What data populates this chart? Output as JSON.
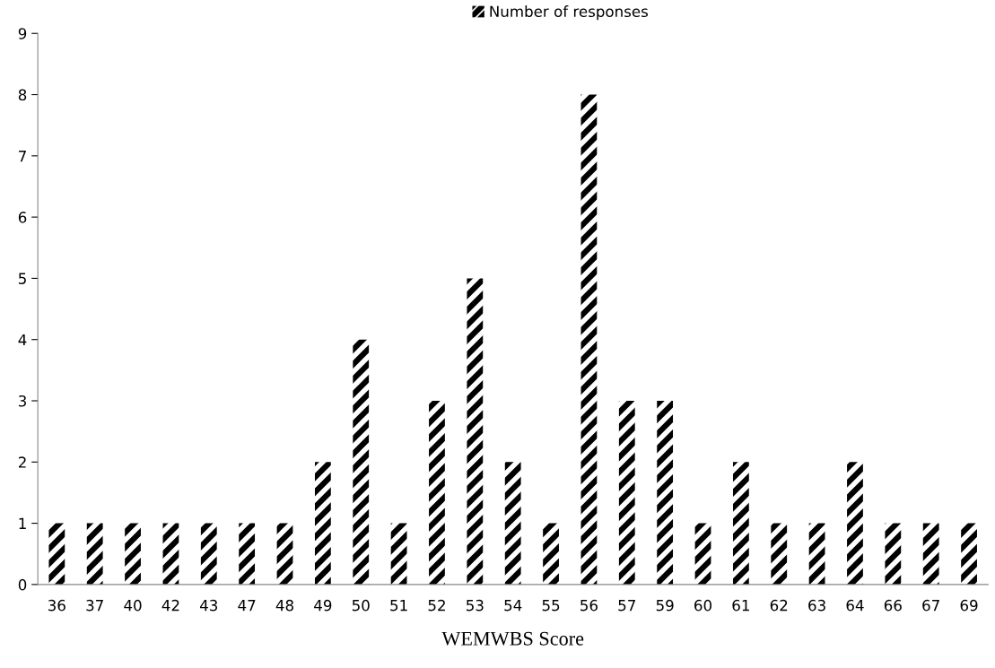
{
  "chart_data": {
    "type": "bar",
    "xlabel": "WEMWBS Score",
    "categories": [
      "36",
      "37",
      "40",
      "42",
      "43",
      "47",
      "48",
      "49",
      "50",
      "51",
      "52",
      "53",
      "54",
      "55",
      "56",
      "57",
      "59",
      "60",
      "61",
      "62",
      "63",
      "64",
      "66",
      "67",
      "69"
    ],
    "series": [
      {
        "name": "Number of responses",
        "color": "#000000",
        "values": [
          1,
          1,
          1,
          1,
          1,
          1,
          1,
          2,
          4,
          1,
          3,
          5,
          2,
          1,
          8,
          3,
          3,
          1,
          2,
          1,
          1,
          2,
          1,
          1,
          1
        ]
      }
    ],
    "ylim": [
      0,
      9
    ],
    "yticks": [
      0,
      1,
      2,
      3,
      4,
      5,
      6,
      7,
      8,
      9
    ],
    "grid": false,
    "legend": "top"
  }
}
